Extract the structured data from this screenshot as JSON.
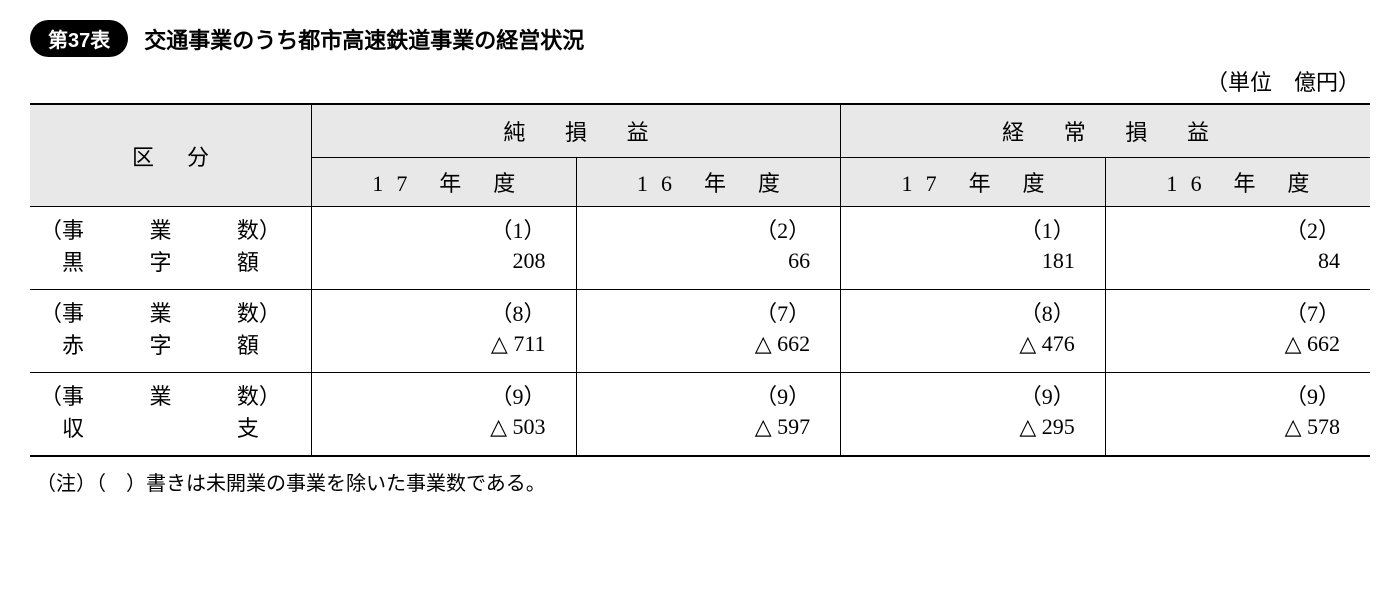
{
  "header": {
    "table_number": "第37表",
    "title": "交通事業のうち都市高速鉄道事業の経営状況",
    "unit": "（単位　億円）"
  },
  "columns": {
    "category": "区分",
    "group1": "純損益",
    "group2": "経常損益",
    "sub1": "17 年 度",
    "sub2": "16 年 度",
    "sub3": "17 年 度",
    "sub4": "16 年 度"
  },
  "rows": {
    "r1": {
      "label_top": "事業数",
      "label_bottom": "黒字額",
      "c1_top": "（1）",
      "c1_bot": "208",
      "c2_top": "（2）",
      "c2_bot": "66",
      "c3_top": "（1）",
      "c3_bot": "181",
      "c4_top": "（2）",
      "c4_bot": "84"
    },
    "r2": {
      "label_top": "事業数",
      "label_bottom": "赤字額",
      "c1_top": "（8）",
      "c1_bot": "△ 711",
      "c2_top": "（7）",
      "c2_bot": "△ 662",
      "c3_top": "（8）",
      "c3_bot": "△ 476",
      "c4_top": "（7）",
      "c4_bot": "△ 662"
    },
    "r3": {
      "label_top": "事業数",
      "label_bottom": "収支",
      "c1_top": "（9）",
      "c1_bot": "△ 503",
      "c2_top": "（9）",
      "c2_bot": "△ 597",
      "c3_top": "（9）",
      "c3_bot": "△ 295",
      "c4_top": "（9）",
      "c4_bot": "△ 578"
    }
  },
  "footnote": "（注）（　）書きは未開業の事業を除いた事業数である。"
}
